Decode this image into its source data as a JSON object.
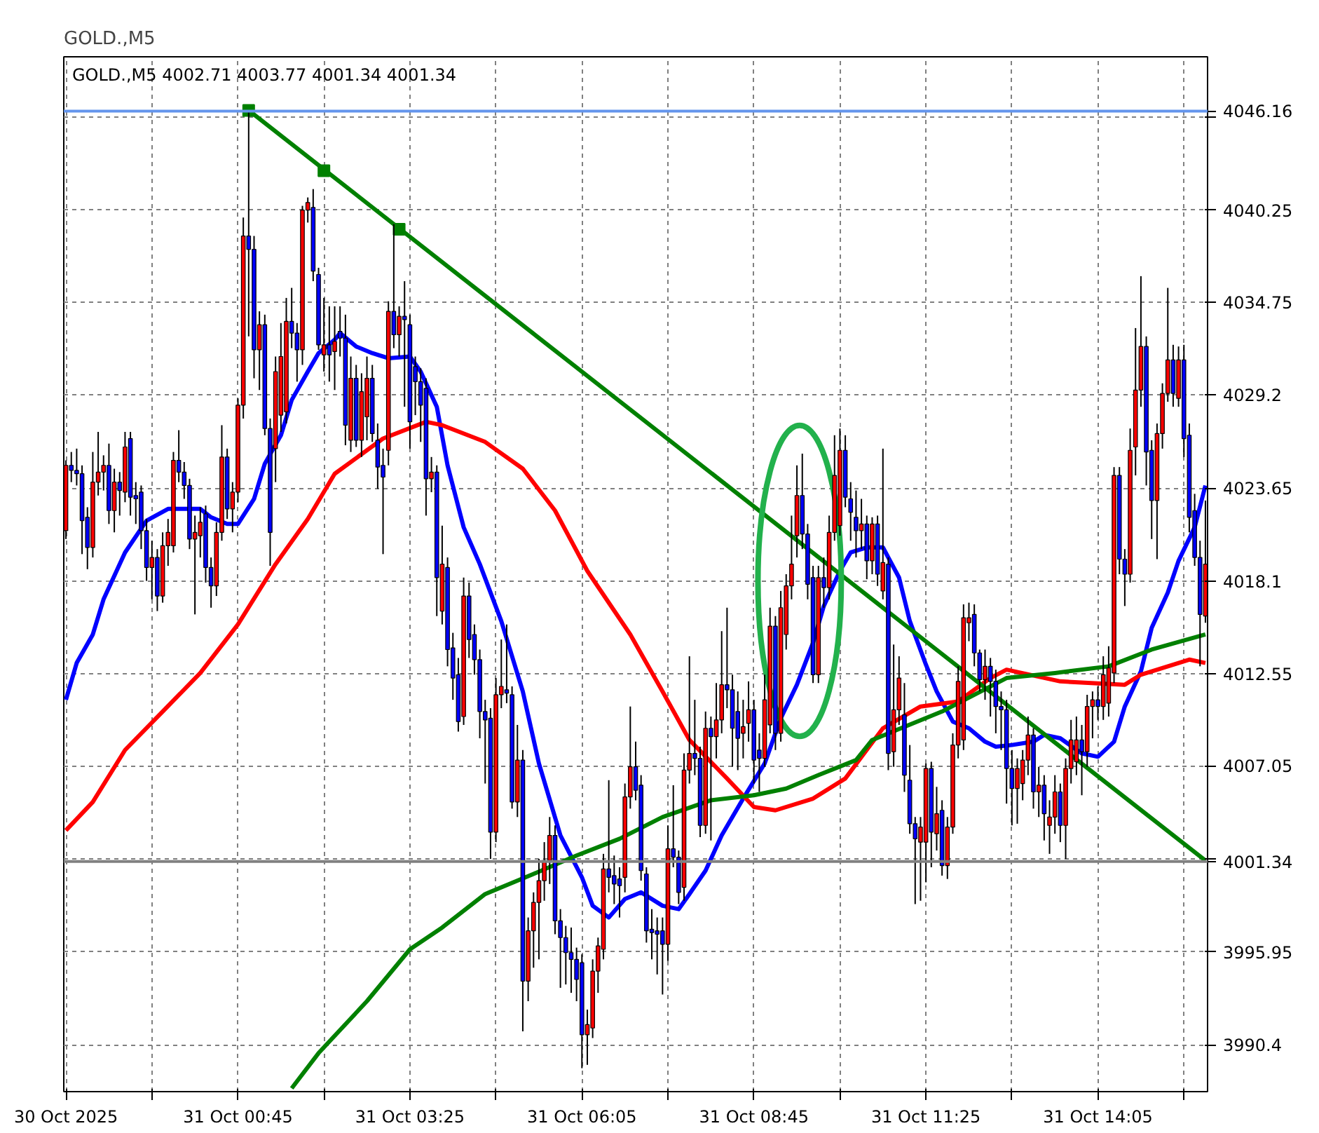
{
  "chart_data": {
    "type": "candlestick",
    "title": "GOLD.,M5",
    "subtitle": "GOLD.,M5  4002.71 4003.77 4001.34 4001.34",
    "x": [
      "2025-10-30T22:05",
      "2025-10-30T22:10",
      "2025-10-30T22:15",
      "2025-10-30T22:20",
      "2025-10-30T22:25",
      "2025-10-30T22:30",
      "2025-10-30T22:35",
      "2025-10-30T22:40",
      "2025-10-30T22:45",
      "2025-10-30T22:50",
      "2025-10-30T22:55",
      "2025-10-30T23:00",
      "2025-10-30T23:05",
      "2025-10-30T23:10",
      "2025-10-30T23:15",
      "2025-10-30T23:20",
      "2025-10-30T23:25",
      "2025-10-30T23:30",
      "2025-10-30T23:35",
      "2025-10-30T23:40",
      "2025-10-30T23:45",
      "2025-10-30T23:50",
      "2025-10-30T23:55",
      "2025-10-31T00:00",
      "2025-10-31T00:05",
      "2025-10-31T00:10",
      "2025-10-31T00:15",
      "2025-10-31T00:20",
      "2025-10-31T00:25",
      "2025-10-31T00:30",
      "2025-10-31T00:35",
      "2025-10-31T00:40",
      "2025-10-31T00:45",
      "2025-10-31T00:50",
      "2025-10-31T00:55",
      "2025-10-31T01:00",
      "2025-10-31T01:05",
      "2025-10-31T01:10",
      "2025-10-31T01:15",
      "2025-10-31T01:20",
      "2025-10-31T01:25",
      "2025-10-31T01:30",
      "2025-10-31T01:35",
      "2025-10-31T01:40",
      "2025-10-31T01:45",
      "2025-10-31T01:50",
      "2025-10-31T01:55",
      "2025-10-31T02:00",
      "2025-10-31T02:05",
      "2025-10-31T02:10",
      "2025-10-31T02:15",
      "2025-10-31T02:20",
      "2025-10-31T02:25",
      "2025-10-31T02:30",
      "2025-10-31T02:35",
      "2025-10-31T02:40",
      "2025-10-31T02:45",
      "2025-10-31T02:50",
      "2025-10-31T02:55",
      "2025-10-31T03:00",
      "2025-10-31T03:05",
      "2025-10-31T03:10",
      "2025-10-31T03:15",
      "2025-10-31T03:20",
      "2025-10-31T03:25",
      "2025-10-31T03:30",
      "2025-10-31T03:35",
      "2025-10-31T03:40",
      "2025-10-31T03:45",
      "2025-10-31T03:50",
      "2025-10-31T03:55",
      "2025-10-31T04:00",
      "2025-10-31T04:05",
      "2025-10-31T04:10",
      "2025-10-31T04:15",
      "2025-10-31T04:20",
      "2025-10-31T04:25",
      "2025-10-31T04:30",
      "2025-10-31T04:35",
      "2025-10-31T04:40",
      "2025-10-31T04:45",
      "2025-10-31T04:50",
      "2025-10-31T04:55",
      "2025-10-31T05:00",
      "2025-10-31T05:05",
      "2025-10-31T05:10",
      "2025-10-31T05:15",
      "2025-10-31T05:20",
      "2025-10-31T05:25",
      "2025-10-31T05:30",
      "2025-10-31T05:35",
      "2025-10-31T05:40",
      "2025-10-31T05:45",
      "2025-10-31T05:50",
      "2025-10-31T05:55",
      "2025-10-31T06:00",
      "2025-10-31T06:05",
      "2025-10-31T06:10",
      "2025-10-31T06:15",
      "2025-10-31T06:20",
      "2025-10-31T06:25",
      "2025-10-31T06:30",
      "2025-10-31T06:35",
      "2025-10-31T06:40",
      "2025-10-31T06:45",
      "2025-10-31T06:50",
      "2025-10-31T06:55",
      "2025-10-31T07:00",
      "2025-10-31T07:05",
      "2025-10-31T07:10",
      "2025-10-31T07:15",
      "2025-10-31T07:20",
      "2025-10-31T07:25",
      "2025-10-31T07:30",
      "2025-10-31T07:35",
      "2025-10-31T07:40",
      "2025-10-31T07:45",
      "2025-10-31T07:50",
      "2025-10-31T07:55",
      "2025-10-31T08:00",
      "2025-10-31T08:05",
      "2025-10-31T08:10",
      "2025-10-31T08:15",
      "2025-10-31T08:20",
      "2025-10-31T08:25",
      "2025-10-31T08:30",
      "2025-10-31T08:35",
      "2025-10-31T08:40",
      "2025-10-31T08:45",
      "2025-10-31T08:50",
      "2025-10-31T08:55",
      "2025-10-31T09:00",
      "2025-10-31T09:05",
      "2025-10-31T09:10",
      "2025-10-31T09:15",
      "2025-10-31T09:20",
      "2025-10-31T09:25",
      "2025-10-31T09:30",
      "2025-10-31T09:35",
      "2025-10-31T09:40",
      "2025-10-31T09:45",
      "2025-10-31T09:50",
      "2025-10-31T09:55",
      "2025-10-31T10:00",
      "2025-10-31T10:05",
      "2025-10-31T10:10",
      "2025-10-31T10:15",
      "2025-10-31T10:20",
      "2025-10-31T10:25",
      "2025-10-31T10:30",
      "2025-10-31T10:35",
      "2025-10-31T10:40",
      "2025-10-31T10:45",
      "2025-10-31T10:50",
      "2025-10-31T10:55",
      "2025-10-31T11:00",
      "2025-10-31T11:05",
      "2025-10-31T11:10",
      "2025-10-31T11:15",
      "2025-10-31T11:20",
      "2025-10-31T11:25",
      "2025-10-31T11:30",
      "2025-10-31T11:35",
      "2025-10-31T11:40",
      "2025-10-31T11:45",
      "2025-10-31T11:50",
      "2025-10-31T11:55",
      "2025-10-31T12:00",
      "2025-10-31T12:05",
      "2025-10-31T12:10",
      "2025-10-31T12:15",
      "2025-10-31T12:20",
      "2025-10-31T12:25",
      "2025-10-31T12:30",
      "2025-10-31T12:35",
      "2025-10-31T12:40",
      "2025-10-31T12:45",
      "2025-10-31T12:50",
      "2025-10-31T12:55",
      "2025-10-31T13:00",
      "2025-10-31T13:05",
      "2025-10-31T13:10",
      "2025-10-31T13:15",
      "2025-10-31T13:20",
      "2025-10-31T13:25",
      "2025-10-31T13:30",
      "2025-10-31T13:35",
      "2025-10-31T13:40",
      "2025-10-31T13:45",
      "2025-10-31T13:50",
      "2025-10-31T13:55",
      "2025-10-31T14:00",
      "2025-10-31T14:05",
      "2025-10-31T14:10",
      "2025-10-31T14:15",
      "2025-10-31T14:20",
      "2025-10-31T14:25",
      "2025-10-31T14:30",
      "2025-10-31T14:35",
      "2025-10-31T14:40",
      "2025-10-31T14:45",
      "2025-10-31T14:50",
      "2025-10-31T14:55",
      "2025-10-31T15:00",
      "2025-10-31T15:05",
      "2025-10-31T15:10",
      "2025-10-31T15:15",
      "2025-10-31T15:20",
      "2025-10-31T15:25",
      "2025-10-31T15:30",
      "2025-10-31T15:35",
      "2025-10-31T15:40",
      "2025-10-31T15:45"
    ],
    "ohlc": [
      [
        4021.1,
        4025.3,
        4020.6,
        4025.0
      ],
      [
        4025.0,
        4025.8,
        4024.0,
        4024.7
      ],
      [
        4024.7,
        4026.0,
        4023.8,
        4024.5
      ],
      [
        4024.5,
        4025.0,
        4019.7,
        4021.7
      ],
      [
        4021.9,
        4022.5,
        4018.8,
        4020.1
      ],
      [
        4020.1,
        4025.8,
        4019.5,
        4024.0
      ],
      [
        4024.0,
        4027.0,
        4023.2,
        4024.6
      ],
      [
        4024.6,
        4025.6,
        4023.5,
        4025.0
      ],
      [
        4025.0,
        4026.3,
        4021.5,
        4022.3
      ],
      [
        4022.3,
        4024.8,
        4021.0,
        4024.0
      ],
      [
        4024.0,
        4024.6,
        4022.0,
        4023.5
      ],
      [
        4023.4,
        4027.0,
        4022.8,
        4026.1
      ],
      [
        4026.6,
        4027.0,
        4022.0,
        4023.1
      ],
      [
        4023.2,
        4024.0,
        4021.5,
        4023.0
      ],
      [
        4023.4,
        4023.8,
        4020.0,
        4021.1
      ],
      [
        4021.1,
        4021.8,
        4018.1,
        4018.9
      ],
      [
        4018.9,
        4020.5,
        4017.0,
        4019.5
      ],
      [
        4019.5,
        4020.0,
        4016.3,
        4017.2
      ],
      [
        4017.2,
        4021.0,
        4016.8,
        4020.2
      ],
      [
        4020.2,
        4021.8,
        4019.0,
        4021.0
      ],
      [
        4020.2,
        4025.8,
        4019.8,
        4025.3
      ],
      [
        4025.3,
        4027.1,
        4024.0,
        4024.6
      ],
      [
        4024.6,
        4025.2,
        4023.0,
        4023.8
      ],
      [
        4023.8,
        4024.2,
        4020.0,
        4020.6
      ],
      [
        4020.6,
        4022.0,
        4016.1,
        4021.0
      ],
      [
        4020.8,
        4022.5,
        4019.5,
        4021.6
      ],
      [
        4022.1,
        4022.6,
        4018.0,
        4018.9
      ],
      [
        4018.9,
        4019.5,
        4016.5,
        4017.8
      ],
      [
        4017.8,
        4021.6,
        4017.2,
        4021.0
      ],
      [
        4021.0,
        4027.4,
        4020.5,
        4025.5
      ],
      [
        4025.5,
        4026.0,
        4021.8,
        4022.4
      ],
      [
        4022.4,
        4024.0,
        4021.0,
        4023.4
      ],
      [
        4023.4,
        4029.0,
        4022.8,
        4028.6
      ],
      [
        4028.6,
        4039.8,
        4027.8,
        4038.7
      ],
      [
        4038.7,
        4046.16,
        4032.7,
        4037.9
      ],
      [
        4037.9,
        4038.7,
        4030.2,
        4031.9
      ],
      [
        4031.9,
        4034.2,
        4029.5,
        4033.4
      ],
      [
        4033.4,
        4034.0,
        4026.8,
        4027.2
      ],
      [
        4027.2,
        4027.8,
        4019.0,
        4021.0
      ],
      [
        4026.0,
        4031.5,
        4024.0,
        4030.6
      ],
      [
        4028.0,
        4033.5,
        4027.0,
        4031.5
      ],
      [
        4028.2,
        4035.0,
        4027.5,
        4033.6
      ],
      [
        4033.6,
        4035.6,
        4032.0,
        4032.9
      ],
      [
        4032.9,
        4033.5,
        4030.0,
        4031.9
      ],
      [
        4031.9,
        4040.5,
        4031.0,
        4040.25
      ],
      [
        4040.25,
        4041.0,
        4039.5,
        4040.7
      ],
      [
        4040.4,
        4041.5,
        4036.0,
        4036.6
      ],
      [
        4036.4,
        4036.8,
        4031.9,
        4032.2
      ],
      [
        4031.6,
        4035.0,
        4030.6,
        4032.2
      ],
      [
        4032.2,
        4034.5,
        4030.0,
        4031.6
      ],
      [
        4031.8,
        4034.5,
        4029.5,
        4032.4
      ],
      [
        4033.0,
        4034.5,
        4031.5,
        4032.6
      ],
      [
        4032.6,
        4034.0,
        4026.2,
        4027.4
      ],
      [
        4026.5,
        4031.5,
        4025.8,
        4030.2
      ],
      [
        4030.2,
        4031.0,
        4026.1,
        4026.5
      ],
      [
        4026.5,
        4030.5,
        4025.5,
        4029.4
      ],
      [
        4027.9,
        4031.5,
        4026.5,
        4030.2
      ],
      [
        4030.2,
        4031.0,
        4026.4,
        4026.9
      ],
      [
        4026.5,
        4027.5,
        4023.6,
        4024.9
      ],
      [
        4025.0,
        4026.0,
        4019.7,
        4024.3
      ],
      [
        4025.9,
        4034.8,
        4025.0,
        4034.2
      ],
      [
        4034.2,
        4039.4,
        4032.0,
        4032.8
      ],
      [
        4032.8,
        4034.5,
        4031.5,
        4033.9
      ],
      [
        4033.9,
        4036.0,
        4028.5,
        4033.7
      ],
      [
        4033.4,
        4034.0,
        4026.0,
        4027.6
      ],
      [
        4030.9,
        4031.5,
        4028.0,
        4030.0
      ],
      [
        4030.0,
        4030.8,
        4026.4,
        4028.6
      ],
      [
        4029.6,
        4030.2,
        4022.0,
        4024.2
      ],
      [
        4024.2,
        4025.5,
        4023.4,
        4024.6
      ],
      [
        4024.6,
        4025.0,
        4016.0,
        4018.3
      ],
      [
        4016.3,
        4021.4,
        4015.5,
        4019.1
      ],
      [
        4018.9,
        4019.5,
        4013.0,
        4014.0
      ],
      [
        4014.1,
        4015.0,
        4011.0,
        4012.3
      ],
      [
        4012.5,
        4013.5,
        4009.1,
        4009.7
      ],
      [
        4010.0,
        4018.3,
        4009.5,
        4017.2
      ],
      [
        4017.2,
        4018.0,
        4013.5,
        4014.6
      ],
      [
        4014.9,
        4015.5,
        4012.5,
        4013.4
      ],
      [
        4013.4,
        4014.0,
        4008.7,
        4010.3
      ],
      [
        4010.3,
        4011.0,
        4006.0,
        4009.8
      ],
      [
        4009.9,
        4010.5,
        4001.5,
        4003.1
      ],
      [
        4003.1,
        4012.3,
        4002.5,
        4011.3
      ],
      [
        4011.3,
        4014.6,
        4010.5,
        4011.8
      ],
      [
        4011.6,
        4015.5,
        4010.8,
        4011.4
      ],
      [
        4011.3,
        4011.8,
        4004.5,
        4004.9
      ],
      [
        4004.9,
        4009.5,
        4004.0,
        4007.4
      ],
      [
        4007.4,
        4008.0,
        3991.2,
        3994.2
      ],
      [
        3994.2,
        3998.0,
        3993.0,
        3997.2
      ],
      [
        3997.2,
        3999.5,
        3995.0,
        3998.9
      ],
      [
        3998.9,
        4001.5,
        3995.5,
        4000.2
      ],
      [
        4000.2,
        4002.5,
        3999.0,
        4001.4
      ],
      [
        4001.4,
        4004.0,
        4000.0,
        4002.9
      ],
      [
        4002.9,
        4003.5,
        3997.0,
        3997.8
      ],
      [
        3997.8,
        3998.5,
        3993.8,
        3996.8
      ],
      [
        3996.8,
        3997.5,
        3994.0,
        3995.9
      ],
      [
        3995.9,
        3997.4,
        3993.5,
        3995.5
      ],
      [
        3995.5,
        3996.2,
        3993.0,
        3994.3
      ],
      [
        3995.3,
        3995.8,
        3989.0,
        3991.0
      ],
      [
        3991.0,
        3992.5,
        3989.2,
        3991.6
      ],
      [
        3991.4,
        3995.5,
        3990.8,
        3994.8
      ],
      [
        3994.8,
        3996.8,
        3993.5,
        3996.3
      ],
      [
        3996.1,
        4001.8,
        3995.5,
        4000.9
      ],
      [
        4000.9,
        4006.2,
        3999.5,
        4000.4
      ],
      [
        4000.5,
        4001.7,
        3998.8,
        4000.0
      ],
      [
        4000.3,
        4001.0,
        3998.0,
        3999.9
      ],
      [
        4000.4,
        4006.0,
        3999.5,
        4005.2
      ],
      [
        4005.2,
        4010.6,
        4004.5,
        4007.0
      ],
      [
        4007.0,
        4008.5,
        4005.0,
        4005.6
      ],
      [
        4005.9,
        4006.5,
        4000.2,
        4000.8
      ],
      [
        4000.6,
        4001.0,
        3996.5,
        3997.2
      ],
      [
        3997.3,
        3998.5,
        3995.5,
        3997.1
      ],
      [
        3997.2,
        3998.0,
        3994.6,
        3997.0
      ],
      [
        3997.2,
        3998.0,
        3993.4,
        3996.4
      ],
      [
        3996.4,
        4003.5,
        3995.4,
        4002.1
      ],
      [
        4002.1,
        4005.9,
        4001.0,
        4001.6
      ],
      [
        4001.6,
        4002.0,
        3998.8,
        3999.5
      ],
      [
        3999.8,
        4007.8,
        3999.0,
        4006.8
      ],
      [
        4006.8,
        4013.6,
        4006.0,
        4007.8
      ],
      [
        4007.8,
        4011.0,
        4006.5,
        4007.5
      ],
      [
        4007.5,
        4008.2,
        4002.8,
        4003.5
      ],
      [
        4003.5,
        4010.3,
        4003.0,
        4009.3
      ],
      [
        4009.3,
        4010.0,
        4002.6,
        4008.8
      ],
      [
        4008.8,
        4012.0,
        4007.5,
        4009.8
      ],
      [
        4009.8,
        4015.1,
        4009.0,
        4011.9
      ],
      [
        4011.9,
        4016.5,
        4010.5,
        4011.6
      ],
      [
        4011.6,
        4012.5,
        4007.0,
        4009.3
      ],
      [
        4010.3,
        4011.5,
        4006.8,
        4008.7
      ],
      [
        4009.0,
        4011.0,
        4007.5,
        4009.4
      ],
      [
        4009.6,
        4012.1,
        4008.5,
        4010.4
      ],
      [
        4010.4,
        4011.0,
        4006.0,
        4007.4
      ],
      [
        4008.0,
        4009.0,
        4005.5,
        4007.5
      ],
      [
        4007.5,
        4012.5,
        4007.0,
        4011.0
      ],
      [
        4009.5,
        4016.5,
        4009.0,
        4015.4
      ],
      [
        4015.4,
        4016.0,
        4008.0,
        4009.0
      ],
      [
        4009.0,
        4017.5,
        4008.5,
        4016.5
      ],
      [
        4014.9,
        4018.5,
        4014.0,
        4017.8
      ],
      [
        4017.8,
        4022.0,
        4017.0,
        4019.1
      ],
      [
        4020.8,
        4025.0,
        4019.5,
        4023.2
      ],
      [
        4023.2,
        4025.7,
        4020.0,
        4020.9
      ],
      [
        4020.9,
        4021.5,
        4017.0,
        4017.9
      ],
      [
        4018.3,
        4019.0,
        4012.0,
        4012.5
      ],
      [
        4012.5,
        4019.0,
        4012.0,
        4018.3
      ],
      [
        4018.3,
        4019.5,
        4016.5,
        4017.7
      ],
      [
        4017.7,
        4022.0,
        4017.0,
        4021.0
      ],
      [
        4021.0,
        4026.8,
        4020.5,
        4024.4
      ],
      [
        4021.4,
        4027.2,
        4020.8,
        4025.9
      ],
      [
        4025.9,
        4026.8,
        4022.5,
        4023.1
      ],
      [
        4023.0,
        4024.0,
        4020.5,
        4022.2
      ],
      [
        4021.9,
        4023.5,
        4019.5,
        4021.1
      ],
      [
        4021.1,
        4023.0,
        4020.0,
        4021.5
      ],
      [
        4021.5,
        4022.0,
        4018.2,
        4019.3
      ],
      [
        4019.3,
        4021.9,
        4018.5,
        4021.5
      ],
      [
        4021.5,
        4022.0,
        4017.8,
        4018.5
      ],
      [
        4017.5,
        4026.0,
        4017.0,
        4019.2
      ],
      [
        4019.1,
        4019.5,
        4006.8,
        4007.8
      ],
      [
        4007.9,
        4014.3,
        4007.0,
        4010.4
      ],
      [
        4010.4,
        4013.6,
        4009.5,
        4012.3
      ],
      [
        4010.1,
        4012.0,
        4005.5,
        4006.5
      ],
      [
        4006.2,
        4008.3,
        4003.0,
        4003.6
      ],
      [
        4003.6,
        4004.0,
        3998.8,
        4002.7
      ],
      [
        4002.5,
        4004.0,
        3999.0,
        4003.4
      ],
      [
        4002.5,
        4007.2,
        4000.1,
        4006.9
      ],
      [
        4006.9,
        4007.3,
        4001.0,
        4003.1
      ],
      [
        4003.0,
        4005.8,
        4002.0,
        4004.2
      ],
      [
        4004.4,
        4005.0,
        4000.5,
        4001.1
      ],
      [
        4001.1,
        4004.0,
        4000.3,
        4003.4
      ],
      [
        4003.4,
        4009.0,
        4003.0,
        4008.3
      ],
      [
        4008.3,
        4013.0,
        4007.5,
        4012.1
      ],
      [
        4008.6,
        4016.7,
        4008.0,
        4015.9
      ],
      [
        4015.6,
        4016.8,
        4014.5,
        4015.9
      ],
      [
        4016.1,
        4016.7,
        4013.0,
        4013.8
      ],
      [
        4013.8,
        4014.0,
        4011.5,
        4012.2
      ],
      [
        4012.2,
        4014.0,
        4011.0,
        4013.0
      ],
      [
        4013.0,
        4013.5,
        4010.0,
        4012.1
      ],
      [
        4012.1,
        4012.8,
        4009.0,
        4010.6
      ],
      [
        4010.6,
        4011.5,
        4008.0,
        4010.4
      ],
      [
        4010.4,
        4011.0,
        4004.8,
        4006.9
      ],
      [
        4006.9,
        4008.0,
        4003.5,
        4005.7
      ],
      [
        4005.7,
        4007.5,
        4003.6,
        4006.9
      ],
      [
        4006.0,
        4008.0,
        4005.0,
        4007.4
      ],
      [
        4007.4,
        4010.0,
        4006.5,
        4008.9
      ],
      [
        4008.9,
        4009.3,
        4004.5,
        4005.5
      ],
      [
        4005.5,
        4007.0,
        4004.0,
        4005.9
      ],
      [
        4005.9,
        4006.5,
        4002.6,
        4004.2
      ],
      [
        4003.5,
        4005.0,
        4001.8,
        4004.0
      ],
      [
        4004.0,
        4006.5,
        4003.0,
        4005.5
      ],
      [
        4005.5,
        4006.0,
        4002.5,
        4003.5
      ],
      [
        4003.5,
        4007.5,
        4001.5,
        4006.9
      ],
      [
        4006.9,
        4009.8,
        4006.0,
        4008.6
      ],
      [
        4007.3,
        4010.0,
        4006.5,
        4008.6
      ],
      [
        4008.6,
        4009.5,
        4005.3,
        4007.9
      ],
      [
        4007.9,
        4011.3,
        4007.0,
        4010.6
      ],
      [
        4010.6,
        4011.5,
        4008.7,
        4011.0
      ],
      [
        4011.0,
        4011.8,
        4009.8,
        4010.6
      ],
      [
        4010.6,
        4013.6,
        4009.8,
        4012.5
      ],
      [
        4010.8,
        4014.2,
        4010.0,
        4012.9
      ],
      [
        4012.6,
        4024.9,
        4012.0,
        4024.4
      ],
      [
        4024.4,
        4024.9,
        4018.5,
        4019.4
      ],
      [
        4019.4,
        4020.0,
        4016.6,
        4018.5
      ],
      [
        4018.5,
        4027.2,
        4018.0,
        4025.9
      ],
      [
        4026.1,
        4033.2,
        4024.4,
        4029.5
      ],
      [
        4029.5,
        4036.3,
        4028.5,
        4032.1
      ],
      [
        4032.1,
        4032.7,
        4023.8,
        4025.8
      ],
      [
        4025.9,
        4026.5,
        4020.6,
        4022.9
      ],
      [
        4022.9,
        4027.5,
        4019.4,
        4026.9
      ],
      [
        4026.9,
        4029.9,
        4026.0,
        4029.3
      ],
      [
        4029.3,
        4035.6,
        4028.8,
        4031.3
      ],
      [
        4031.3,
        4032.2,
        4028.5,
        4029.3
      ],
      [
        4029.0,
        4032.1,
        4028.5,
        4031.3
      ],
      [
        4031.3,
        4032.2,
        4025.5,
        4026.6
      ],
      [
        4026.8,
        4027.5,
        4021.0,
        4021.9
      ],
      [
        4022.3,
        4023.3,
        4019.0,
        4019.5
      ],
      [
        4019.5,
        4020.5,
        4013.0,
        4016.1
      ],
      [
        4016.0,
        4022.9,
        4015.6,
        4019.1
      ]
    ],
    "colors": [
      "#ff0000",
      "#0000ff",
      "#0000ff",
      "#0000ff",
      "#0000ff",
      "#ff0000",
      "#ff0000",
      "#ff0000",
      "#0000ff",
      "#ff0000",
      "#0000ff",
      "#ff0000",
      "#0000ff",
      "#0000ff",
      "#0000ff",
      "#0000ff",
      "#ff0000",
      "#0000ff",
      "#ff0000",
      "#ff0000",
      "#ff0000",
      "#0000ff",
      "#0000ff",
      "#0000ff",
      "#ff0000",
      "#ff0000",
      "#0000ff",
      "#0000ff",
      "#ff0000",
      "#ff0000",
      "#0000ff",
      "#ff0000",
      "#ff0000",
      "#ff0000",
      "#0000ff",
      "#0000ff",
      "#ff0000",
      "#0000ff",
      "#0000ff",
      "#ff0000",
      "#ff0000",
      "#ff0000",
      "#0000ff",
      "#0000ff",
      "#ff0000",
      "#ff0000",
      "#0000ff",
      "#0000ff",
      "#ff0000",
      "#0000ff",
      "#ff0000",
      "#0000ff",
      "#0000ff",
      "#ff0000",
      "#0000ff",
      "#ff0000",
      "#ff0000",
      "#0000ff",
      "#0000ff",
      "#0000ff",
      "#ff0000",
      "#0000ff",
      "#ff0000",
      "#0000ff",
      "#0000ff",
      "#0000ff",
      "#0000ff",
      "#0000ff",
      "#ff0000",
      "#0000ff",
      "#ff0000",
      "#0000ff",
      "#0000ff",
      "#0000ff",
      "#ff0000",
      "#0000ff",
      "#0000ff",
      "#0000ff",
      "#0000ff",
      "#0000ff",
      "#ff0000",
      "#ff0000",
      "#0000ff",
      "#0000ff",
      "#ff0000",
      "#0000ff",
      "#ff0000",
      "#ff0000",
      "#ff0000",
      "#ff0000",
      "#ff0000",
      "#0000ff",
      "#0000ff",
      "#0000ff",
      "#0000ff",
      "#0000ff",
      "#0000ff",
      "#ff0000",
      "#ff0000",
      "#ff0000",
      "#ff0000",
      "#0000ff",
      "#0000ff",
      "#0000ff",
      "#ff0000",
      "#ff0000",
      "#0000ff",
      "#0000ff",
      "#0000ff",
      "#0000ff",
      "#0000ff",
      "#0000ff",
      "#ff0000",
      "#0000ff",
      "#0000ff",
      "#ff0000",
      "#ff0000",
      "#0000ff",
      "#0000ff",
      "#ff0000",
      "#0000ff",
      "#ff0000",
      "#ff0000",
      "#0000ff",
      "#0000ff",
      "#0000ff",
      "#ff0000",
      "#ff0000",
      "#0000ff",
      "#0000ff",
      "#ff0000",
      "#ff0000",
      "#0000ff",
      "#ff0000",
      "#ff0000",
      "#ff0000",
      "#ff0000",
      "#0000ff",
      "#0000ff",
      "#0000ff",
      "#ff0000",
      "#0000ff",
      "#ff0000",
      "#ff0000",
      "#ff0000",
      "#0000ff",
      "#0000ff",
      "#0000ff",
      "#ff0000",
      "#0000ff",
      "#ff0000",
      "#0000ff",
      "#ff0000",
      "#0000ff",
      "#ff0000",
      "#ff0000",
      "#0000ff",
      "#0000ff",
      "#0000ff",
      "#ff0000",
      "#ff0000",
      "#0000ff",
      "#ff0000",
      "#0000ff",
      "#ff0000",
      "#ff0000",
      "#ff0000",
      "#ff0000",
      "#ff0000",
      "#0000ff",
      "#0000ff",
      "#ff0000",
      "#0000ff",
      "#0000ff",
      "#0000ff",
      "#0000ff",
      "#0000ff",
      "#ff0000",
      "#ff0000",
      "#ff0000",
      "#0000ff",
      "#ff0000",
      "#0000ff",
      "#ff0000",
      "#ff0000",
      "#0000ff",
      "#ff0000",
      "#ff0000",
      "#ff0000",
      "#0000ff",
      "#ff0000",
      "#ff0000",
      "#0000ff",
      "#ff0000",
      "#ff0000",
      "#ff0000",
      "#0000ff",
      "#0000ff",
      "#ff0000",
      "#ff0000",
      "#ff0000",
      "#0000ff",
      "#0000ff",
      "#ff0000",
      "#ff0000",
      "#ff0000",
      "#0000ff",
      "#ff0000",
      "#0000ff",
      "#0000ff",
      "#0000ff",
      "#0000ff",
      "#ff0000"
    ],
    "xlim": [
      "2025-10-30T22:03",
      "2025-10-31T15:47"
    ],
    "xticks": [
      {
        "value": "2025-10-30T22:05",
        "label": "30 Oct 2025"
      },
      {
        "value": "2025-10-30T23:25",
        "label": null
      },
      {
        "value": "2025-10-31T00:45",
        "label": "31 Oct 00:45"
      },
      {
        "value": "2025-10-31T02:05",
        "label": null
      },
      {
        "value": "2025-10-31T03:25",
        "label": "31 Oct 03:25"
      },
      {
        "value": "2025-10-31T04:45",
        "label": null
      },
      {
        "value": "2025-10-31T06:05",
        "label": "31 Oct 06:05"
      },
      {
        "value": "2025-10-31T07:25",
        "label": null
      },
      {
        "value": "2025-10-31T08:45",
        "label": "31 Oct 08:45"
      },
      {
        "value": "2025-10-31T10:05",
        "label": null
      },
      {
        "value": "2025-10-31T11:25",
        "label": "31 Oct 11:25"
      },
      {
        "value": "2025-10-31T12:45",
        "label": null
      },
      {
        "value": "2025-10-31T14:05",
        "label": "31 Oct 14:05"
      },
      {
        "value": "2025-10-31T15:25",
        "label": null
      }
    ],
    "ylim": [
      3987.6,
      4049.4
    ],
    "yticks": [
      3990.4,
      3995.95,
      {
        "value": 4001.5,
        "label": null
      },
      4007.05,
      4012.55,
      4018.1,
      4023.65,
      4029.2,
      4034.75,
      4040.25,
      {
        "value": 4045.8,
        "label": null
      }
    ],
    "grid": true,
    "ref_lines": [
      {
        "axis": "y",
        "value": 4046.16,
        "label": "4046.16",
        "color": "#6495ed"
      },
      {
        "axis": "y",
        "value": 4001.34,
        "label": "4001.34",
        "color": "#808080"
      }
    ],
    "series": [
      {
        "type": "line",
        "color": "#0000ff",
        "x": [
          "2025-10-30T22:05",
          "2025-10-30T22:15",
          "2025-10-30T22:30",
          "2025-10-30T22:40",
          "2025-10-30T23:00",
          "2025-10-30T23:20",
          "2025-10-30T23:40",
          "2025-10-31T00:10",
          "2025-10-31T00:20",
          "2025-10-31T00:35",
          "2025-10-31T00:45",
          "2025-10-31T01:00",
          "2025-10-31T01:10",
          "2025-10-31T01:25",
          "2025-10-31T01:35",
          "2025-10-31T01:50",
          "2025-10-31T02:00",
          "2025-10-31T02:15",
          "2025-10-31T02:20",
          "2025-10-31T02:35",
          "2025-10-31T02:50",
          "2025-10-31T03:05",
          "2025-10-31T03:25",
          "2025-10-31T03:35",
          "2025-10-31T03:50",
          "2025-10-31T04:00",
          "2025-10-31T04:15",
          "2025-10-31T04:30",
          "2025-10-31T04:50",
          "2025-10-31T05:10",
          "2025-10-31T05:25",
          "2025-10-31T05:45",
          "2025-10-31T06:05",
          "2025-10-31T06:15",
          "2025-10-31T06:30",
          "2025-10-31T06:45",
          "2025-10-31T07:00",
          "2025-10-31T07:20",
          "2025-10-31T07:35",
          "2025-10-31T07:45",
          "2025-10-31T08:00",
          "2025-10-31T08:15",
          "2025-10-31T08:35",
          "2025-10-31T08:55",
          "2025-10-31T09:10",
          "2025-10-31T09:25",
          "2025-10-31T09:40",
          "2025-10-31T09:50",
          "2025-10-31T10:05",
          "2025-10-31T10:15",
          "2025-10-31T10:30",
          "2025-10-31T10:45",
          "2025-10-31T11:00",
          "2025-10-31T11:10",
          "2025-10-31T11:25",
          "2025-10-31T11:35",
          "2025-10-31T11:50",
          "2025-10-31T12:05",
          "2025-10-31T12:20",
          "2025-10-31T12:30",
          "2025-10-31T12:45",
          "2025-10-31T13:05",
          "2025-10-31T13:15",
          "2025-10-31T13:30",
          "2025-10-31T13:50",
          "2025-10-31T14:05",
          "2025-10-31T14:20",
          "2025-10-31T14:30",
          "2025-10-31T14:45",
          "2025-10-31T14:55",
          "2025-10-31T15:10",
          "2025-10-31T15:20",
          "2025-10-31T15:35",
          "2025-10-31T15:45"
        ],
        "values": [
          4011.0,
          4013.2,
          4014.9,
          4017.0,
          4019.8,
          4021.7,
          4022.4,
          4022.4,
          4021.9,
          4021.5,
          4021.5,
          4023.0,
          4025.1,
          4026.8,
          4028.9,
          4030.6,
          4031.7,
          4032.5,
          4032.9,
          4032.1,
          4031.7,
          4031.4,
          4031.5,
          4030.6,
          4028.5,
          4025.0,
          4021.3,
          4019.1,
          4015.7,
          4011.5,
          4007.2,
          4002.9,
          4000.4,
          3998.7,
          3998.0,
          3999.1,
          3999.5,
          3998.7,
          3998.5,
          3999.4,
          4000.8,
          4002.9,
          4005.1,
          4007.2,
          4009.9,
          4011.9,
          4014.4,
          4016.6,
          4018.7,
          4019.8,
          4020.1,
          4020.1,
          4018.3,
          4015.7,
          4013.1,
          4011.5,
          4009.7,
          4009.3,
          4008.5,
          4008.2,
          4008.3,
          4008.5,
          4008.9,
          4008.7,
          4007.8,
          4007.6,
          4008.5,
          4010.6,
          4012.7,
          4015.3,
          4017.4,
          4019.3,
          4021.3,
          4023.8
        ]
      },
      {
        "type": "line",
        "color": "#ff0000",
        "x": [
          "2025-10-30T22:05",
          "2025-10-30T22:30",
          "2025-10-30T23:00",
          "2025-10-30T23:35",
          "2025-10-31T00:10",
          "2025-10-31T00:45",
          "2025-10-31T01:20",
          "2025-10-31T01:50",
          "2025-10-31T02:15",
          "2025-10-31T03:00",
          "2025-10-31T03:40",
          "2025-10-31T03:55",
          "2025-10-31T04:35",
          "2025-10-31T05:10",
          "2025-10-31T05:40",
          "2025-10-31T06:10",
          "2025-10-31T06:50",
          "2025-10-31T07:20",
          "2025-10-31T07:45",
          "2025-10-31T08:20",
          "2025-10-31T08:45",
          "2025-10-31T09:05",
          "2025-10-31T09:40",
          "2025-10-31T10:10",
          "2025-10-31T10:45",
          "2025-10-31T11:20",
          "2025-10-31T11:55",
          "2025-10-31T12:25",
          "2025-10-31T12:40",
          "2025-10-31T13:30",
          "2025-10-31T14:30",
          "2025-10-31T14:45",
          "2025-10-31T15:30",
          "2025-10-31T15:45"
        ],
        "values": [
          4003.2,
          4004.9,
          4008.0,
          4010.3,
          4012.6,
          4015.5,
          4019.1,
          4021.8,
          4024.5,
          4026.6,
          4027.6,
          4027.4,
          4026.4,
          4024.8,
          4022.3,
          4018.7,
          4014.9,
          4011.5,
          4008.6,
          4006.3,
          4004.6,
          4004.4,
          4005.1,
          4006.3,
          4009.3,
          4010.6,
          4010.9,
          4012.3,
          4012.8,
          4012.1,
          4011.9,
          4012.5,
          4013.4,
          4013.2
        ]
      },
      {
        "type": "line",
        "color": "#008000",
        "x": [
          "2025-10-31T01:35",
          "2025-10-31T02:00",
          "2025-10-31T02:45",
          "2025-10-31T03:25",
          "2025-10-31T03:55",
          "2025-10-31T04:35",
          "2025-10-31T05:20",
          "2025-10-31T06:00",
          "2025-10-31T06:40",
          "2025-10-31T07:20",
          "2025-10-31T08:05",
          "2025-10-31T08:45",
          "2025-10-31T09:15",
          "2025-10-31T09:45",
          "2025-10-31T10:20",
          "2025-10-31T10:35",
          "2025-10-31T11:40",
          "2025-10-31T12:40",
          "2025-10-31T13:25",
          "2025-10-31T14:15",
          "2025-10-31T14:55",
          "2025-10-31T15:45"
        ],
        "values": [
          3987.8,
          3989.9,
          3993.0,
          3996.1,
          3997.4,
          3999.4,
          4000.6,
          4001.7,
          4002.7,
          4004.0,
          4005.0,
          4005.3,
          4005.7,
          4006.5,
          4007.4,
          4008.6,
          4010.3,
          4012.3,
          4012.6,
          4013.0,
          4014.0,
          4014.9
        ]
      },
      {
        "type": "line",
        "color": "#008000",
        "x": [
          "2025-10-31T00:55",
          "2025-10-31T15:45"
        ],
        "values": [
          4046.2,
          4001.4
        ]
      },
      {
        "type": "scatter",
        "marker": "square",
        "color": "#008000",
        "x": [
          "2025-10-31T00:55",
          "2025-10-31T02:05",
          "2025-10-31T03:15"
        ],
        "values": [
          4046.2,
          4042.6,
          4039.1
        ]
      }
    ]
  }
}
